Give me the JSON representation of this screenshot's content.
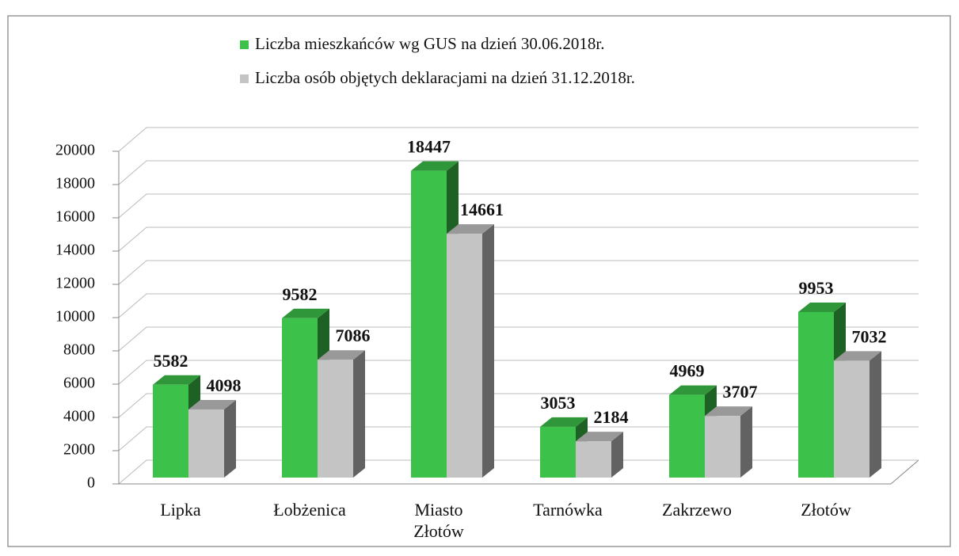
{
  "chart_data": {
    "type": "bar3d",
    "categories": [
      "Lipka",
      "Łobżenica",
      "Miasto Złotów",
      "Tarnówka",
      "Zakrzewo",
      "Złotów"
    ],
    "series": [
      {
        "name": "Liczba mieszkańców wg GUS na dzień 30.06.2018r.",
        "color": "#3cc24a",
        "values": [
          5582,
          9582,
          18447,
          3053,
          4969,
          9953
        ]
      },
      {
        "name": "Liczba osób objętych deklaracjami na dzień 31.12.2018r.",
        "color": "#c4c4c4",
        "values": [
          4098,
          7086,
          14661,
          2184,
          3707,
          7032
        ]
      }
    ],
    "ylim": [
      0,
      20000
    ],
    "yticks": [
      0,
      2000,
      4000,
      6000,
      8000,
      10000,
      12000,
      14000,
      16000,
      18000,
      20000
    ],
    "grid": true
  }
}
